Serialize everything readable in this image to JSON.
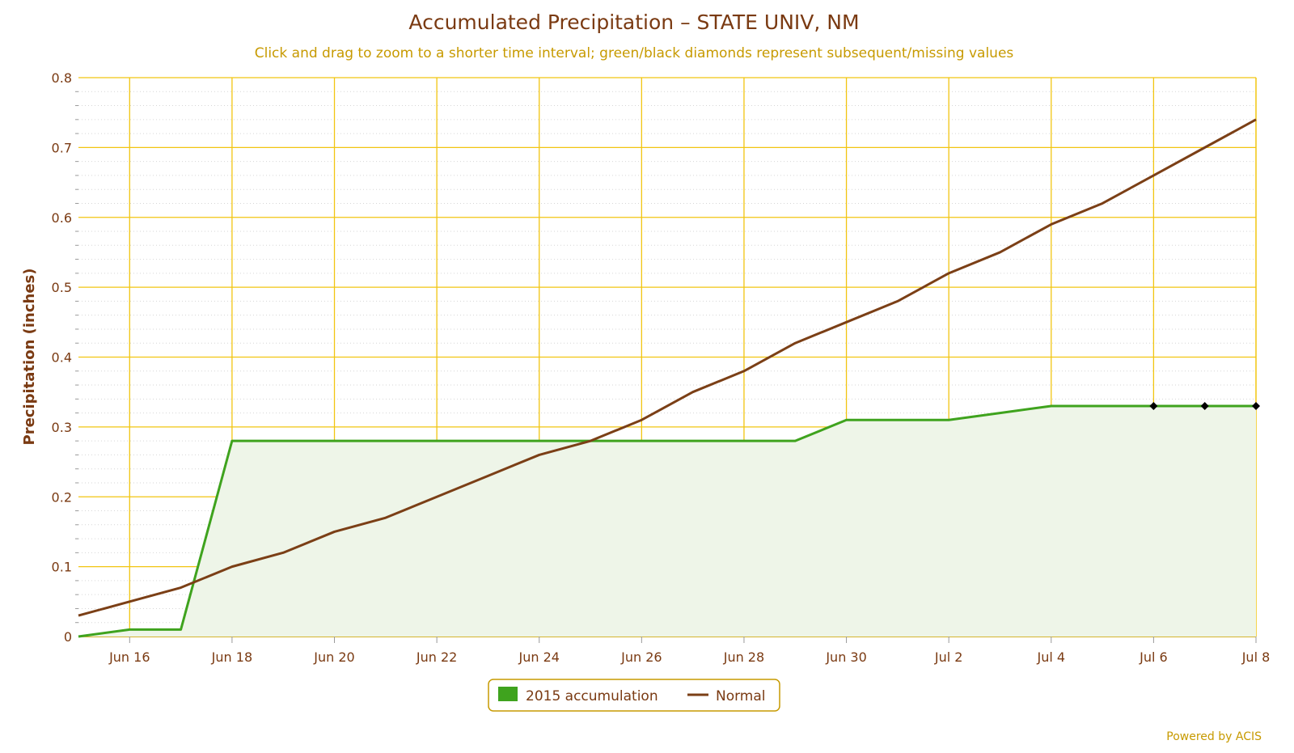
{
  "chart_data": {
    "type": "line",
    "title": "Accumulated Precipitation – STATE UNIV, NM",
    "subtitle": "Click and drag to zoom to a shorter time interval; green/black diamonds represent subsequent/missing values",
    "ylabel": "Precipitation (inches)",
    "xlabel": "",
    "ylim": [
      0,
      0.8
    ],
    "y_ticks": [
      0,
      0.1,
      0.2,
      0.3,
      0.4,
      0.5,
      0.6,
      0.7,
      0.8
    ],
    "y_tick_labels": [
      "0",
      "0.1",
      "0.2",
      "0.3",
      "0.4",
      "0.5",
      "0.6",
      "0.7",
      "0.8"
    ],
    "x": [
      "Jun 15",
      "Jun 16",
      "Jun 17",
      "Jun 18",
      "Jun 19",
      "Jun 20",
      "Jun 21",
      "Jun 22",
      "Jun 23",
      "Jun 24",
      "Jun 25",
      "Jun 26",
      "Jun 27",
      "Jun 28",
      "Jun 29",
      "Jun 30",
      "Jul 1",
      "Jul 2",
      "Jul 3",
      "Jul 4",
      "Jul 5",
      "Jul 6",
      "Jul 7",
      "Jul 8"
    ],
    "x_tick_labels": [
      "Jun 16",
      "Jun 18",
      "Jun 20",
      "Jun 22",
      "Jun 24",
      "Jun 26",
      "Jun 28",
      "Jun 30",
      "Jul 2",
      "Jul 4",
      "Jul 6",
      "Jul 8"
    ],
    "series": [
      {
        "name": "2015 accumulation",
        "type": "area",
        "color": "#3fa31e",
        "values": [
          0.0,
          0.01,
          0.01,
          0.28,
          0.28,
          0.28,
          0.28,
          0.28,
          0.28,
          0.28,
          0.28,
          0.28,
          0.28,
          0.28,
          0.28,
          0.31,
          0.31,
          0.31,
          0.32,
          0.33,
          0.33,
          0.33,
          0.33,
          0.33
        ],
        "missing_markers": [
          "Jul 6",
          "Jul 7",
          "Jul 8"
        ]
      },
      {
        "name": "Normal",
        "type": "line",
        "color": "#7b3f16",
        "values": [
          0.03,
          0.05,
          0.07,
          0.1,
          0.12,
          0.15,
          0.17,
          0.2,
          0.23,
          0.26,
          0.28,
          0.31,
          0.35,
          0.38,
          0.42,
          0.45,
          0.48,
          0.52,
          0.55,
          0.59,
          0.62,
          0.66,
          0.7,
          0.74
        ]
      }
    ],
    "grid": true,
    "legend": "bottom-center"
  },
  "credit": "Powered by ACIS",
  "colors": {
    "grid": "#f2c511",
    "text": "#7a3a12",
    "subtitle": "#c79a00",
    "fill": "#eef5e8"
  }
}
